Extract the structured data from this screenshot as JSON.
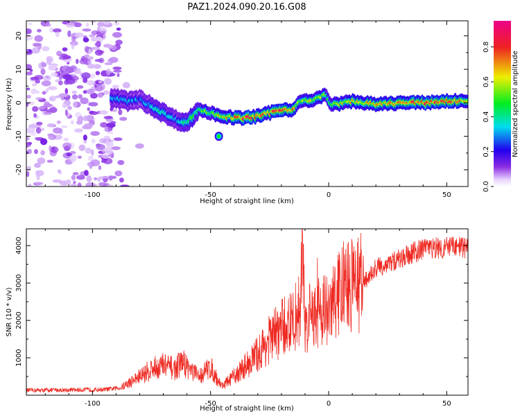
{
  "title": "PAZ1.2024.090.20.16.G08",
  "colors": {
    "snr_line": "#ee2a22",
    "axes": "#000000",
    "colormap": [
      "#ffffff",
      "#e9d5ff",
      "#8a2be2",
      "#2200ee",
      "#00ddee",
      "#00ee22",
      "#eeee00",
      "#ee2222",
      "#ee0088"
    ]
  },
  "chart_data": [
    {
      "type": "heatmap",
      "title": "",
      "xlabel": "Height of straight line (km)",
      "ylabel": "Frequency (Hz)",
      "xlim": [
        -128,
        59
      ],
      "ylim": [
        -25,
        24.5
      ],
      "x_ticks": [
        -100,
        -50,
        0,
        50
      ],
      "y_ticks": [
        -20,
        -10,
        0,
        10,
        20
      ],
      "colorbar": {
        "label": "Normalized spectral amplitude",
        "range": [
          0,
          0.95
        ],
        "ticks": [
          0.0,
          0.2,
          0.4,
          0.6,
          0.8
        ]
      },
      "ridge": {
        "x": [
          -92,
          -85,
          -80,
          -75,
          -70,
          -65,
          -60,
          -55,
          -50,
          -45,
          -40,
          -35,
          -30,
          -25,
          -20,
          -15,
          -12,
          -8,
          -4,
          -1,
          0,
          3,
          10,
          20,
          30,
          40,
          50,
          59
        ],
        "y": [
          1.5,
          0.5,
          1,
          -1,
          -3,
          -5,
          -6,
          -2,
          -3,
          -4,
          -4.5,
          -4.5,
          -4,
          -3,
          -2,
          -2,
          0.5,
          0.5,
          1.5,
          2.5,
          0,
          -0.5,
          0.5,
          -0.5,
          0,
          0,
          0.5,
          0.5
        ],
        "amplitude": [
          0.3,
          0.35,
          0.3,
          0.4,
          0.4,
          0.35,
          0.45,
          0.5,
          0.6,
          0.7,
          0.8,
          0.85,
          0.8,
          0.75,
          0.85,
          0.8,
          0.6,
          0.65,
          0.6,
          0.55,
          0.5,
          0.6,
          0.7,
          0.7,
          0.75,
          0.85,
          0.8,
          0.75
        ]
      },
      "noise_region": [
        -128,
        -88
      ]
    },
    {
      "type": "line",
      "title": "",
      "xlabel": "Height of straight line (km)",
      "ylabel": "SNR (10 * v/v)",
      "xlim": [
        -128,
        59
      ],
      "ylim": [
        0,
        4450
      ],
      "x_ticks": [
        -100,
        -50,
        0,
        50
      ],
      "y_ticks": [
        1000,
        2000,
        3000,
        4000
      ],
      "series": [
        {
          "x": [
            -128,
            -110,
            -95,
            -88,
            -80,
            -75,
            -70,
            -65,
            -62,
            -58,
            -55,
            -50,
            -47,
            -45,
            -40,
            -35,
            -30,
            -25,
            -20,
            -15,
            -12,
            -11,
            -10,
            -8,
            -5,
            -2,
            0,
            2,
            5,
            10,
            15,
            20,
            25,
            30,
            35,
            40,
            45,
            50,
            55,
            59
          ],
          "y": [
            130,
            140,
            150,
            200,
            500,
            700,
            800,
            700,
            900,
            650,
            500,
            750,
            400,
            250,
            500,
            800,
            1100,
            1500,
            1800,
            1950,
            2400,
            4300,
            1800,
            2100,
            2200,
            2400,
            2100,
            2500,
            2800,
            3000,
            3000,
            3400,
            3500,
            3650,
            3800,
            3900,
            3950,
            3950,
            3950,
            3950
          ]
        }
      ]
    }
  ]
}
